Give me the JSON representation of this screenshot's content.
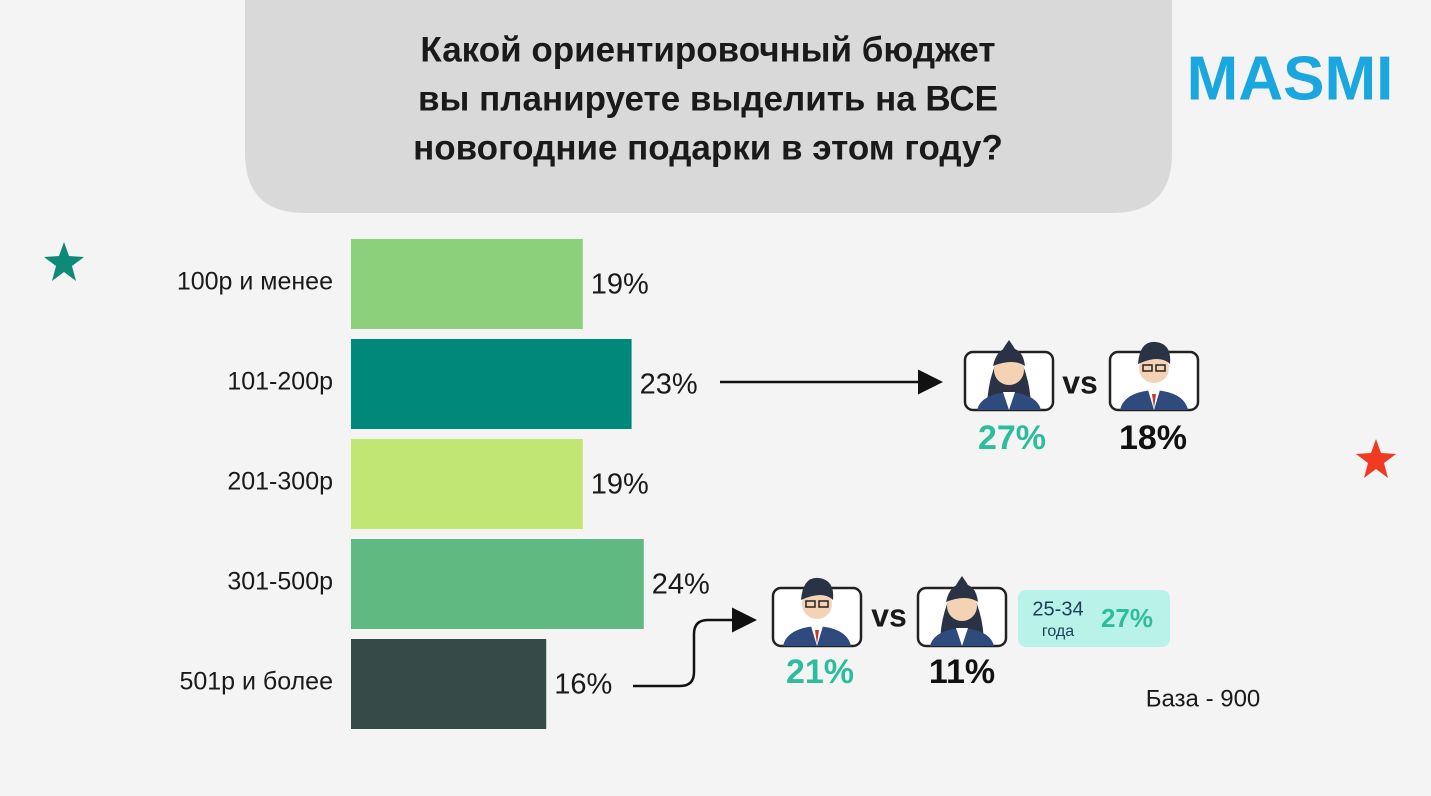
{
  "logo": "MASMI",
  "chart_data": {
    "type": "bar",
    "orientation": "horizontal",
    "title": [
      "Какой ориентировочный бюджет",
      "вы планируете выделить на ВСЕ",
      "новогодние подарки в этом году?"
    ],
    "categories": [
      "100р и менее",
      "101-200р",
      "201-300р",
      "301-500р",
      "501р и более"
    ],
    "values": [
      19,
      23,
      19,
      24,
      16
    ],
    "value_labels": [
      "19%",
      "23%",
      "19%",
      "24%",
      "16%"
    ],
    "colors": [
      "#8cd07b",
      "#00887a",
      "#c2e673",
      "#60b981",
      "#364a47"
    ],
    "comparisons": [
      {
        "values": [
          27,
          18
        ],
        "value_labels": [
          "27%",
          "18%"
        ],
        "separator": "vs",
        "colors": [
          "#2dbd9c",
          "#111111"
        ]
      },
      {
        "values": [
          21,
          11
        ],
        "value_labels": [
          "21%",
          "11%"
        ],
        "separator": "vs",
        "colors": [
          "#2dbd9c",
          "#111111"
        ],
        "segment": {
          "label": [
            "25-34",
            "года"
          ],
          "value": 27,
          "value_label": "27%"
        }
      }
    ],
    "footnote": "База - 900"
  }
}
